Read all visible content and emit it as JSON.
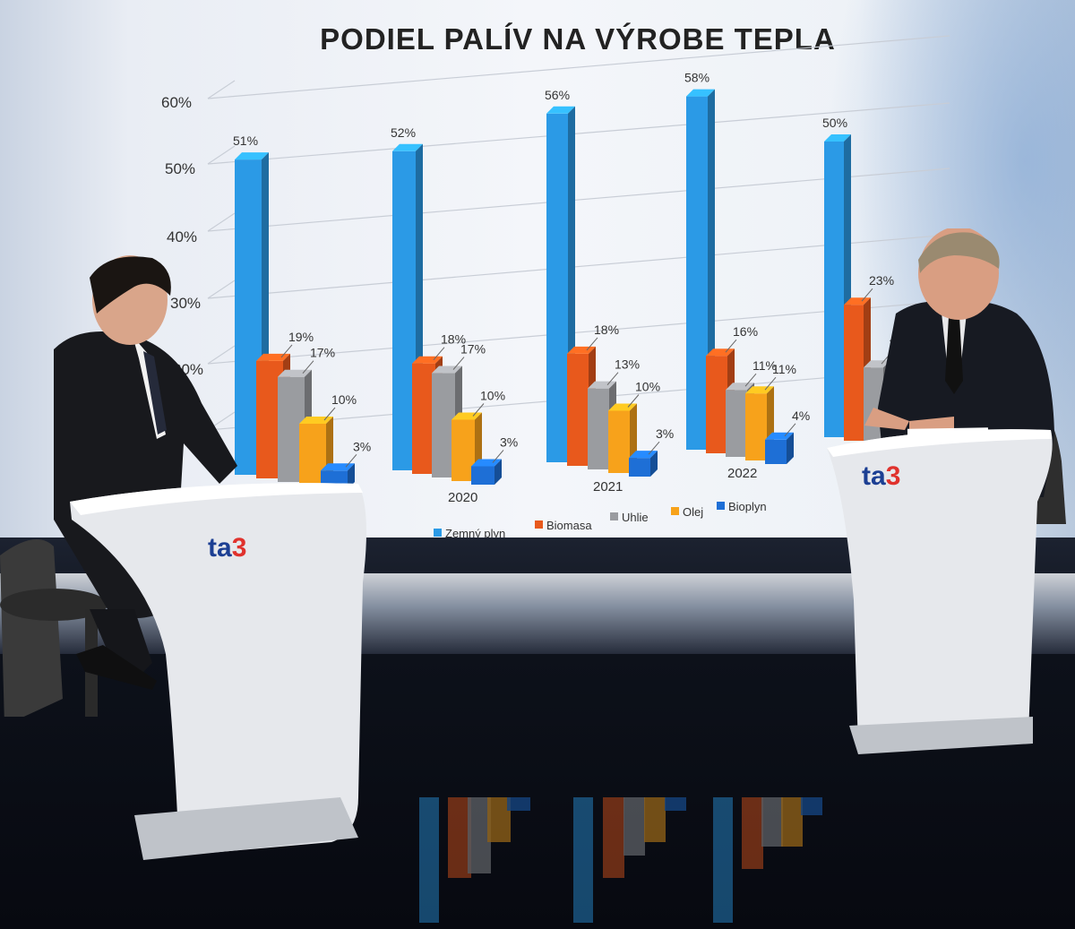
{
  "chart_data": {
    "type": "bar",
    "title": "PODIEL PALÍV NA VÝROBE TEPLA",
    "y_ticks": [
      "60%",
      "50%",
      "40%",
      "30%",
      "20%"
    ],
    "ylim": [
      0,
      60
    ],
    "grid": true,
    "legend_placement": "bottom",
    "categories": [
      "",
      "2020",
      "2021",
      "2022",
      ""
    ],
    "series": [
      {
        "name": "Zemný plyn",
        "color": "#2b9ae6",
        "values": [
          51,
          52,
          56,
          58,
          50
        ],
        "labels": [
          "51%",
          "52%",
          "56%",
          "58%",
          "50%"
        ]
      },
      {
        "name": "Biomasa",
        "color": "#e8591c",
        "values": [
          19,
          18,
          18,
          16,
          23
        ],
        "labels": [
          "19%",
          "18%",
          "18%",
          "16%",
          "23%"
        ]
      },
      {
        "name": "Uhlie",
        "color": "#9a9ca0",
        "values": [
          17,
          17,
          13,
          11,
          13
        ],
        "labels": [
          "17%",
          "17%",
          "13%",
          "11%",
          "13%"
        ]
      },
      {
        "name": "Olej",
        "color": "#f7a21b",
        "values": [
          10,
          10,
          10,
          11,
          null
        ],
        "labels": [
          "10%",
          "10%",
          "10%",
          "11%",
          ""
        ]
      },
      {
        "name": "Bioplyn",
        "color": "#1e6fd6",
        "values": [
          3,
          3,
          3,
          4,
          null
        ],
        "labels": [
          "3%",
          "3%",
          "3%",
          "4%",
          ""
        ]
      }
    ]
  },
  "desk_logos": [
    {
      "ta": "ta",
      "num": "3"
    },
    {
      "ta": "ta",
      "num": "3"
    }
  ]
}
